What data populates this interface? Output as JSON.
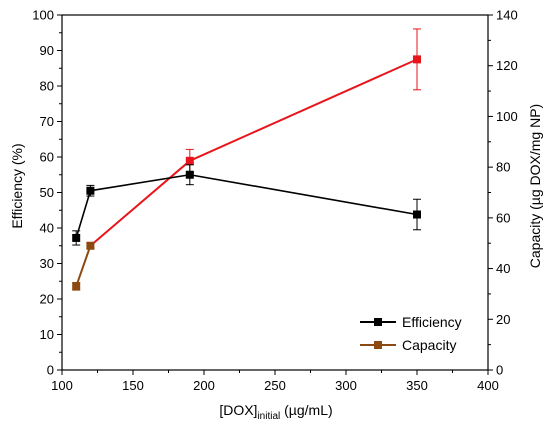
{
  "chart_data": {
    "type": "line",
    "xlabel_main": "[DOX]",
    "xlabel_sub": "initial",
    "xlabel_unit": " (µg/mL)",
    "ylabel_left": "Efficiency (%)",
    "ylabel_right": "Capacity (µg DOX/mg NP)",
    "xlim": [
      100,
      400
    ],
    "ylim_left": [
      0,
      100
    ],
    "ylim_right": [
      0,
      140
    ],
    "x_ticks": [
      100,
      150,
      200,
      250,
      300,
      350,
      400
    ],
    "y_left_ticks": [
      0,
      10,
      20,
      30,
      40,
      50,
      60,
      70,
      80,
      90,
      100
    ],
    "y_right_ticks": [
      0,
      20,
      40,
      60,
      80,
      100,
      120,
      140
    ],
    "grid": false,
    "legend_position": "bottom-right",
    "series": [
      {
        "name": "Efficiency",
        "axis": "left",
        "color": "#000000",
        "marker": "square",
        "x": [
          110,
          120,
          190,
          350
        ],
        "y": [
          37.2,
          50.5,
          55.0,
          43.8
        ],
        "error": [
          2.0,
          1.5,
          2.8,
          4.3
        ]
      },
      {
        "name": "Capacity",
        "axis": "right",
        "color": "#e8161c",
        "color_early": "#8b4a12",
        "marker": "square",
        "x": [
          110,
          120,
          190,
          350
        ],
        "y": [
          33.0,
          49.0,
          82.5,
          122.5
        ],
        "error": [
          1.5,
          1.0,
          4.5,
          12.0
        ]
      }
    ]
  }
}
